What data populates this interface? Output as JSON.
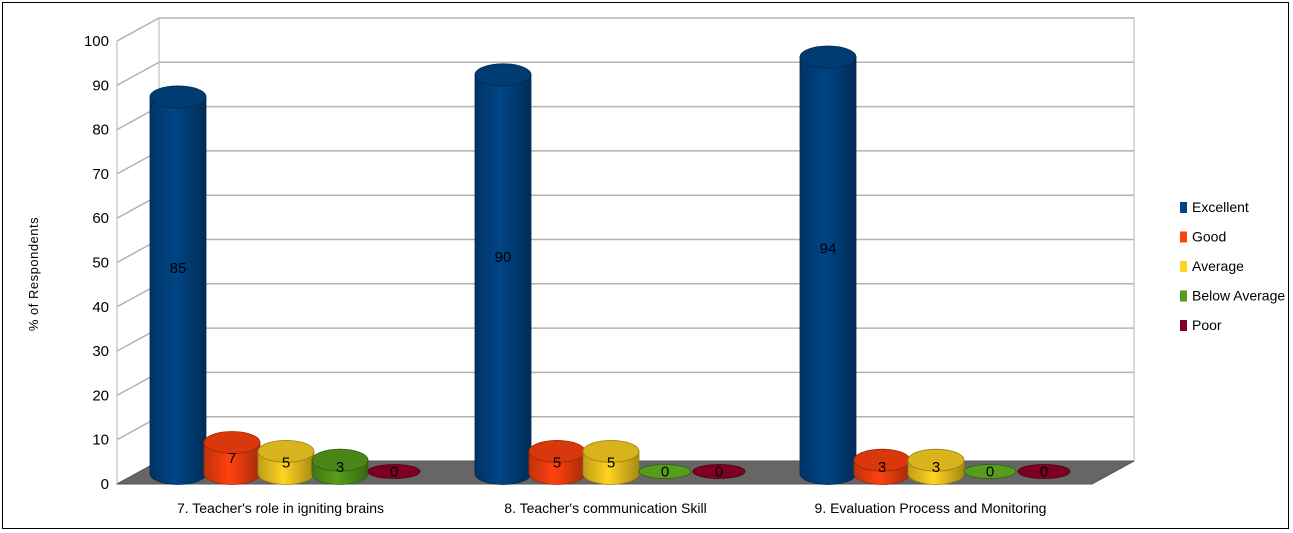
{
  "chart_data": {
    "type": "bar",
    "style": "3d-cylinder",
    "title": "",
    "xlabel": "",
    "ylabel": "% of Respondents",
    "ylim": [
      0,
      100
    ],
    "yticks": [
      0,
      10,
      20,
      30,
      40,
      50,
      60,
      70,
      80,
      90,
      100
    ],
    "grid": true,
    "legend_position": "right",
    "categories": [
      "7. Teacher's role in igniting brains",
      "8. Teacher's communication Skill",
      "9. Evaluation Process and Monitoring"
    ],
    "series": [
      {
        "name": "Excellent",
        "color": "#004586",
        "values": [
          85,
          90,
          94
        ]
      },
      {
        "name": "Good",
        "color": "#ff420e",
        "values": [
          7,
          5,
          3
        ]
      },
      {
        "name": "Average",
        "color": "#ffd320",
        "values": [
          5,
          5,
          3
        ]
      },
      {
        "name": "Below Average",
        "color": "#579d1c",
        "values": [
          3,
          0,
          0
        ]
      },
      {
        "name": "Poor",
        "color": "#7e0021",
        "values": [
          0,
          0,
          0
        ]
      }
    ]
  }
}
